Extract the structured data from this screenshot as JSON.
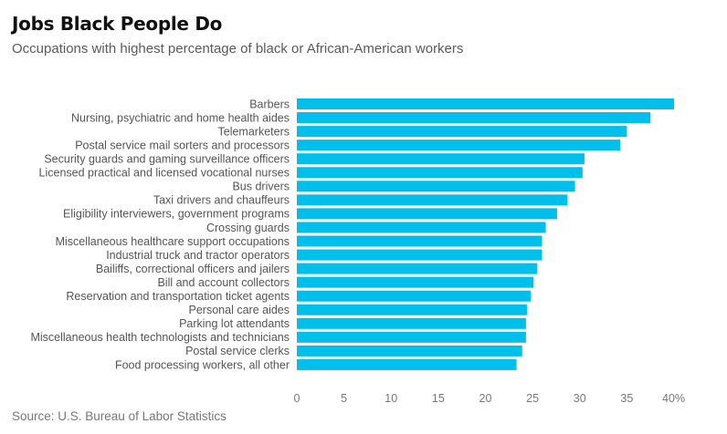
{
  "chart_data": {
    "type": "bar",
    "orientation": "horizontal",
    "title": "Jobs Black People Do",
    "subtitle": "Occupations with highest percentage of black or African-American workers",
    "source": "Source: U.S. Bureau of Labor Statistics",
    "categories": [
      "Barbers",
      "Nursing, psychiatric and home health aides",
      "Telemarketers",
      "Postal service mail sorters and processors",
      "Security guards and gaming surveillance officers",
      "Licensed practical and licensed vocational nurses",
      "Bus drivers",
      "Taxi drivers and chauffeurs",
      "Eligibility interviewers, government programs",
      "Crossing guards",
      "Miscellaneous healthcare support occupations",
      "Industrial truck and tractor operators",
      "Bailiffs, correctional officers and jailers",
      "Bill and account collectors",
      "Reservation and transportation ticket agents",
      "Personal care aides",
      "Parking lot attendants",
      "Miscellaneous health technologists and technicians",
      "Postal service clerks",
      "Food processing workers, all other"
    ],
    "values": [
      40.0,
      37.5,
      35.0,
      34.3,
      30.5,
      30.3,
      29.5,
      28.7,
      27.6,
      26.4,
      26.0,
      26.0,
      25.5,
      25.1,
      24.8,
      24.4,
      24.3,
      24.3,
      23.9,
      23.3
    ],
    "xlim": [
      0,
      40
    ],
    "ticks": [
      "0",
      "5",
      "10",
      "15",
      "20",
      "25",
      "30",
      "35",
      "40%"
    ],
    "tick_values": [
      0,
      5,
      10,
      15,
      20,
      25,
      30,
      35,
      40
    ],
    "bar_color": "#00bfeb",
    "grid": false,
    "legend": "none"
  }
}
